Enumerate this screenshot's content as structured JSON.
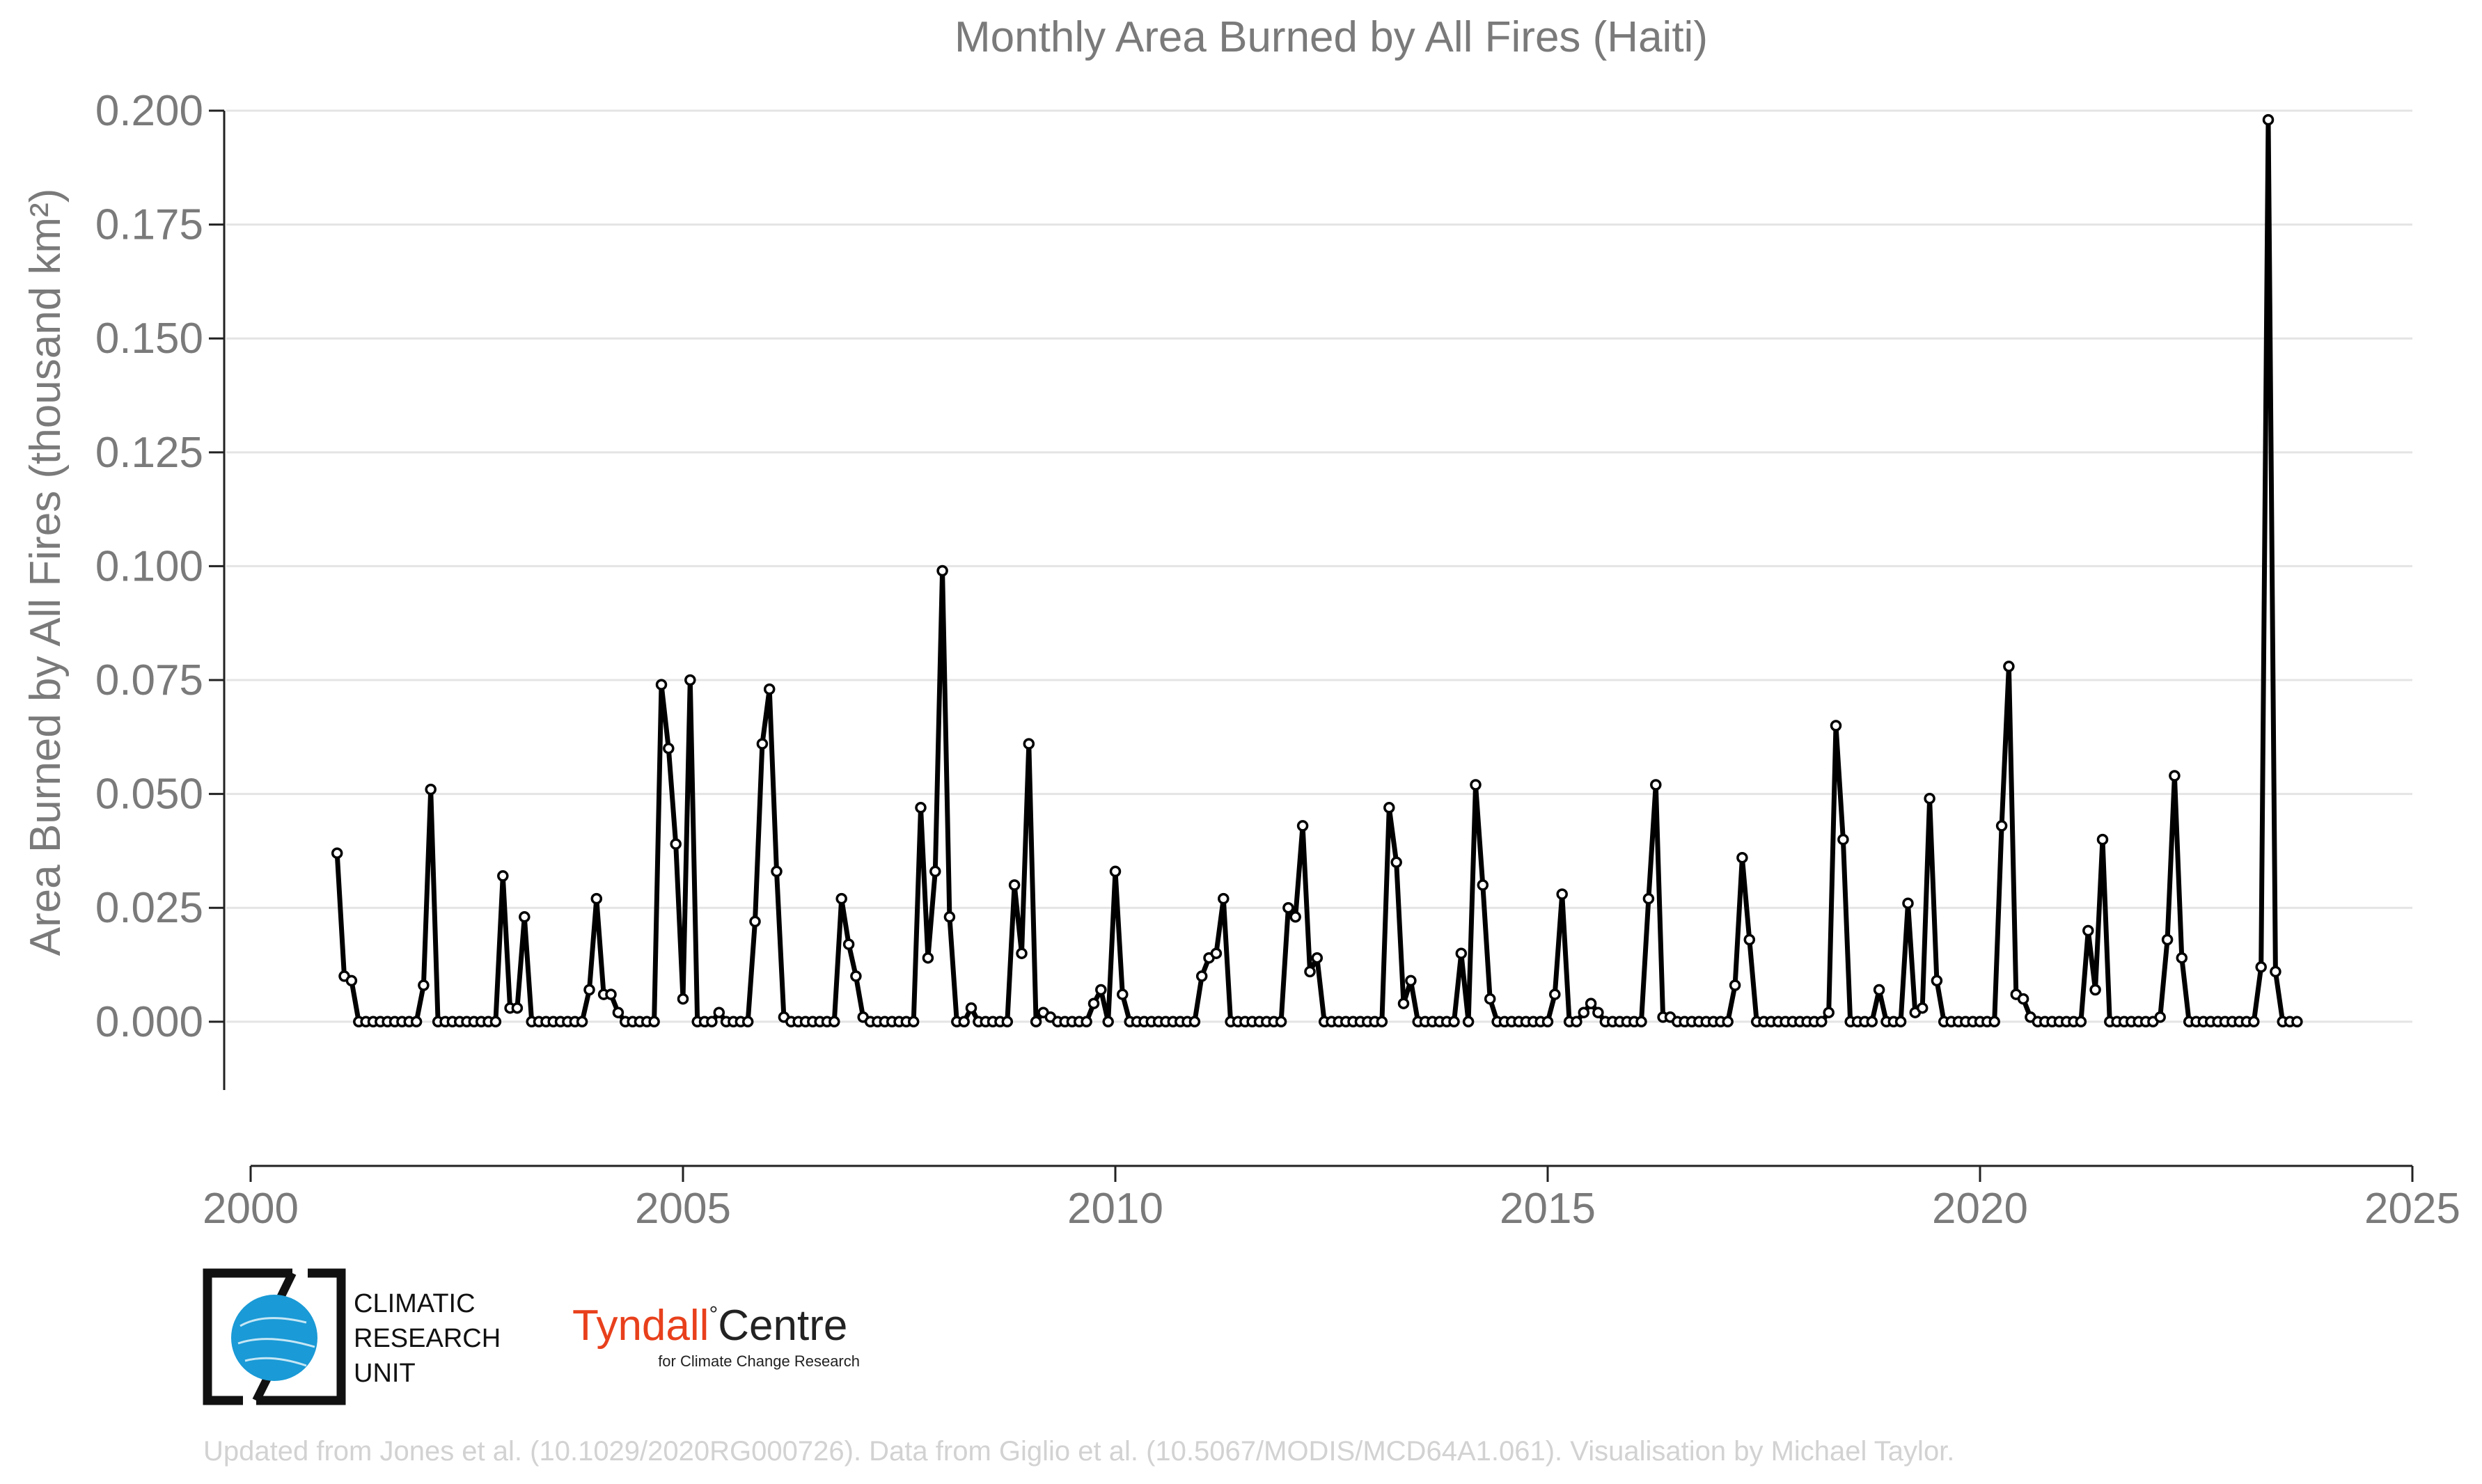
{
  "chart_data": {
    "type": "line",
    "title": "Monthly Area Burned by All Fires (Haiti)",
    "ylabel": "Area Burned by All Fires (thousand km²)",
    "xlabel": "",
    "xlim": [
      2000,
      2025
    ],
    "ylim": [
      -0.015,
      0.2
    ],
    "x_ticks": [
      "2000",
      "2005",
      "2010",
      "2015",
      "2020",
      "2025"
    ],
    "y_ticks": [
      "0.000",
      "0.025",
      "0.050",
      "0.075",
      "0.100",
      "0.125",
      "0.150",
      "0.175",
      "0.200"
    ],
    "grid": "horizontal",
    "start": "2001-01",
    "frequency": "monthly",
    "series": [
      {
        "values": [
          0.037,
          0.01,
          0.009,
          0.0,
          0.0,
          0.0,
          0.0,
          0.0,
          0.0,
          0.0,
          0.0,
          0.0,
          0.008,
          0.051,
          0.0,
          0.0,
          0.0,
          0.0,
          0.0,
          0.0,
          0.0,
          0.0,
          0.0,
          0.032,
          0.003,
          0.003,
          0.023,
          0.0,
          0.0,
          0.0,
          0.0,
          0.0,
          0.0,
          0.0,
          0.0,
          0.007,
          0.027,
          0.006,
          0.006,
          0.002,
          0.0,
          0.0,
          0.0,
          0.0,
          0.0,
          0.074,
          0.06,
          0.039,
          0.005,
          0.075,
          0.0,
          0.0,
          0.0,
          0.002,
          0.0,
          0.0,
          0.0,
          0.0,
          0.022,
          0.061,
          0.073,
          0.033,
          0.001,
          0.0,
          0.0,
          0.0,
          0.0,
          0.0,
          0.0,
          0.0,
          0.027,
          0.017,
          0.01,
          0.001,
          0.0,
          0.0,
          0.0,
          0.0,
          0.0,
          0.0,
          0.0,
          0.047,
          0.014,
          0.033,
          0.099,
          0.023,
          0.0,
          0.0,
          0.003,
          0.0,
          0.0,
          0.0,
          0.0,
          0.0,
          0.03,
          0.015,
          0.061,
          0.0,
          0.002,
          0.001,
          0.0,
          0.0,
          0.0,
          0.0,
          0.0,
          0.004,
          0.007,
          0.0,
          0.033,
          0.006,
          0.0,
          0.0,
          0.0,
          0.0,
          0.0,
          0.0,
          0.0,
          0.0,
          0.0,
          0.0,
          0.01,
          0.014,
          0.015,
          0.027,
          0.0,
          0.0,
          0.0,
          0.0,
          0.0,
          0.0,
          0.0,
          0.0,
          0.025,
          0.023,
          0.043,
          0.011,
          0.014,
          0.0,
          0.0,
          0.0,
          0.0,
          0.0,
          0.0,
          0.0,
          0.0,
          0.0,
          0.047,
          0.035,
          0.004,
          0.009,
          0.0,
          0.0,
          0.0,
          0.0,
          0.0,
          0.0,
          0.015,
          0.0,
          0.052,
          0.03,
          0.005,
          0.0,
          0.0,
          0.0,
          0.0,
          0.0,
          0.0,
          0.0,
          0.0,
          0.006,
          0.028,
          0.0,
          0.0,
          0.002,
          0.004,
          0.002,
          0.0,
          0.0,
          0.0,
          0.0,
          0.0,
          0.0,
          0.027,
          0.052,
          0.001,
          0.001,
          0.0,
          0.0,
          0.0,
          0.0,
          0.0,
          0.0,
          0.0,
          0.0,
          0.008,
          0.036,
          0.018,
          0.0,
          0.0,
          0.0,
          0.0,
          0.0,
          0.0,
          0.0,
          0.0,
          0.0,
          0.0,
          0.002,
          0.065,
          0.04,
          0.0,
          0.0,
          0.0,
          0.0,
          0.007,
          0.0,
          0.0,
          0.0,
          0.026,
          0.002,
          0.003,
          0.049,
          0.009,
          0.0,
          0.0,
          0.0,
          0.0,
          0.0,
          0.0,
          0.0,
          0.0,
          0.043,
          0.078,
          0.006,
          0.005,
          0.001,
          0.0,
          0.0,
          0.0,
          0.0,
          0.0,
          0.0,
          0.0,
          0.02,
          0.007,
          0.04,
          0.0,
          0.0,
          0.0,
          0.0,
          0.0,
          0.0,
          0.0,
          0.001,
          0.018,
          0.054,
          0.014,
          0.0,
          0.0,
          0.0,
          0.0,
          0.0,
          0.0,
          0.0,
          0.0,
          0.0,
          0.0,
          0.012,
          0.198,
          0.011,
          0.0,
          0.0,
          0.0
        ]
      }
    ]
  },
  "logos": {
    "cru": [
      "CLIMATIC",
      "RESEARCH",
      "UNIT"
    ],
    "tyndall_name": "Tyndall",
    "tyndall_centre": "Centre",
    "tyndall_sub": "for Climate Change Research",
    "tyndall_color": "#e8401c",
    "cru_globe_color": "#1a9ad6"
  },
  "credit": "Updated from Jones et al. (10.1029/2020RG000726). Data from Giglio et al. (10.5067/MODIS/MCD64A1.061). Visualisation by Michael Taylor."
}
